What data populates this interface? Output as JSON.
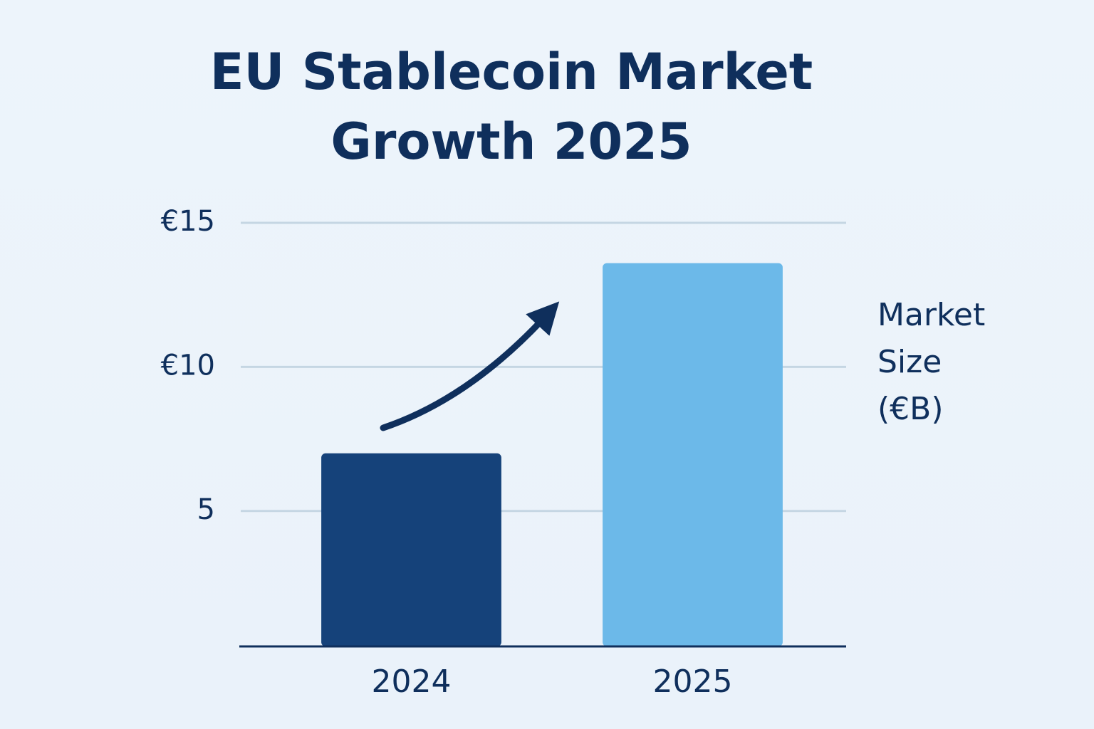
{
  "chart_data": {
    "type": "bar",
    "title": "EU Stablecoin Market Growth 2025",
    "y_label": "Market Size (€B)",
    "categories": [
      "2024",
      "2025"
    ],
    "values": [
      7.0,
      13.6
    ],
    "colors": [
      "#15427a",
      "#6cb9e9"
    ],
    "ylim": [
      0.3,
      15
    ],
    "yticks": [
      5,
      {
        "value": 10,
        "label": "€10"
      },
      {
        "value": 15,
        "label": "€15"
      }
    ],
    "grid": true
  }
}
